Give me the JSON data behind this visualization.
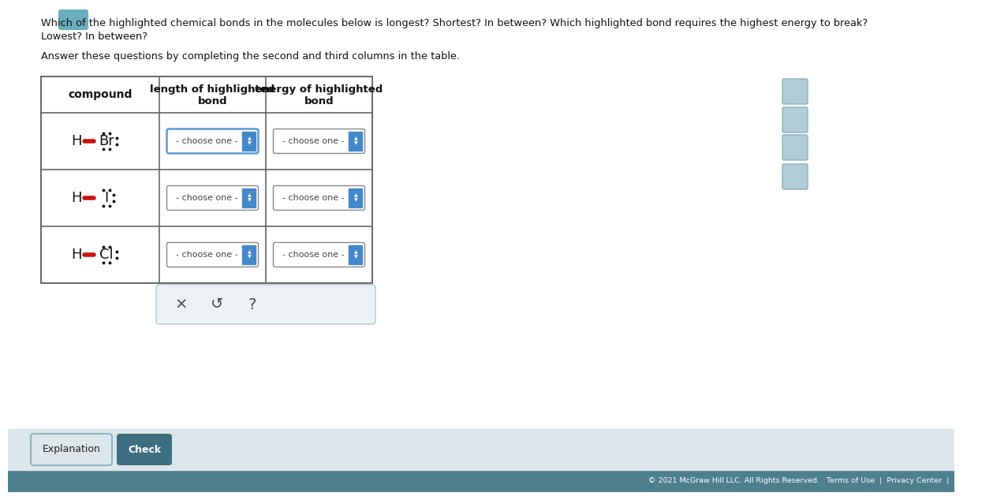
{
  "title_line1": "Which of the highlighted chemical bonds in the molecules below is longest? Shortest? In between? Which highlighted bond requires the highest energy to break?",
  "title_line2": "Lowest? In between?",
  "subtitle": "Answer these questions by completing the second and third columns in the table.",
  "bg_color": "#ffffff",
  "footer_bg": "#4d7f8f",
  "footer_text": "© 2021 McGraw Hill LLC. All Rights Reserved.   Terms of Use  |  Privacy Center  |  Accessibility",
  "button_bar_bg": "#dde6ea",
  "explanation_btn_border": "#7aacbb",
  "check_btn_color": "#3d6f80",
  "table_border": "#666666",
  "col1_header": "compound",
  "col2_header_line1": "length of highlighted",
  "col2_header_line2": "bond",
  "col3_header_line1": "energy of highlighted",
  "col3_header_line2": "bond",
  "dropdown_text": "- choose one -",
  "dropdown_border_active": "#5b9bd5",
  "dropdown_border_normal": "#888888",
  "dropdown_arrow_color": "#4488cc",
  "popup_bg": "#edf3f5",
  "popup_border": "#b0c8d0",
  "side_icon_color": "#b0cdd8",
  "side_icon_border": "#8ab0be",
  "top_icon_color": "#6aadbe",
  "compounds": [
    "HBr",
    "HI",
    "HCl"
  ],
  "elements": [
    "Br",
    "I",
    "Cl"
  ],
  "bond_color": "#cc1111",
  "text_color": "#111111"
}
